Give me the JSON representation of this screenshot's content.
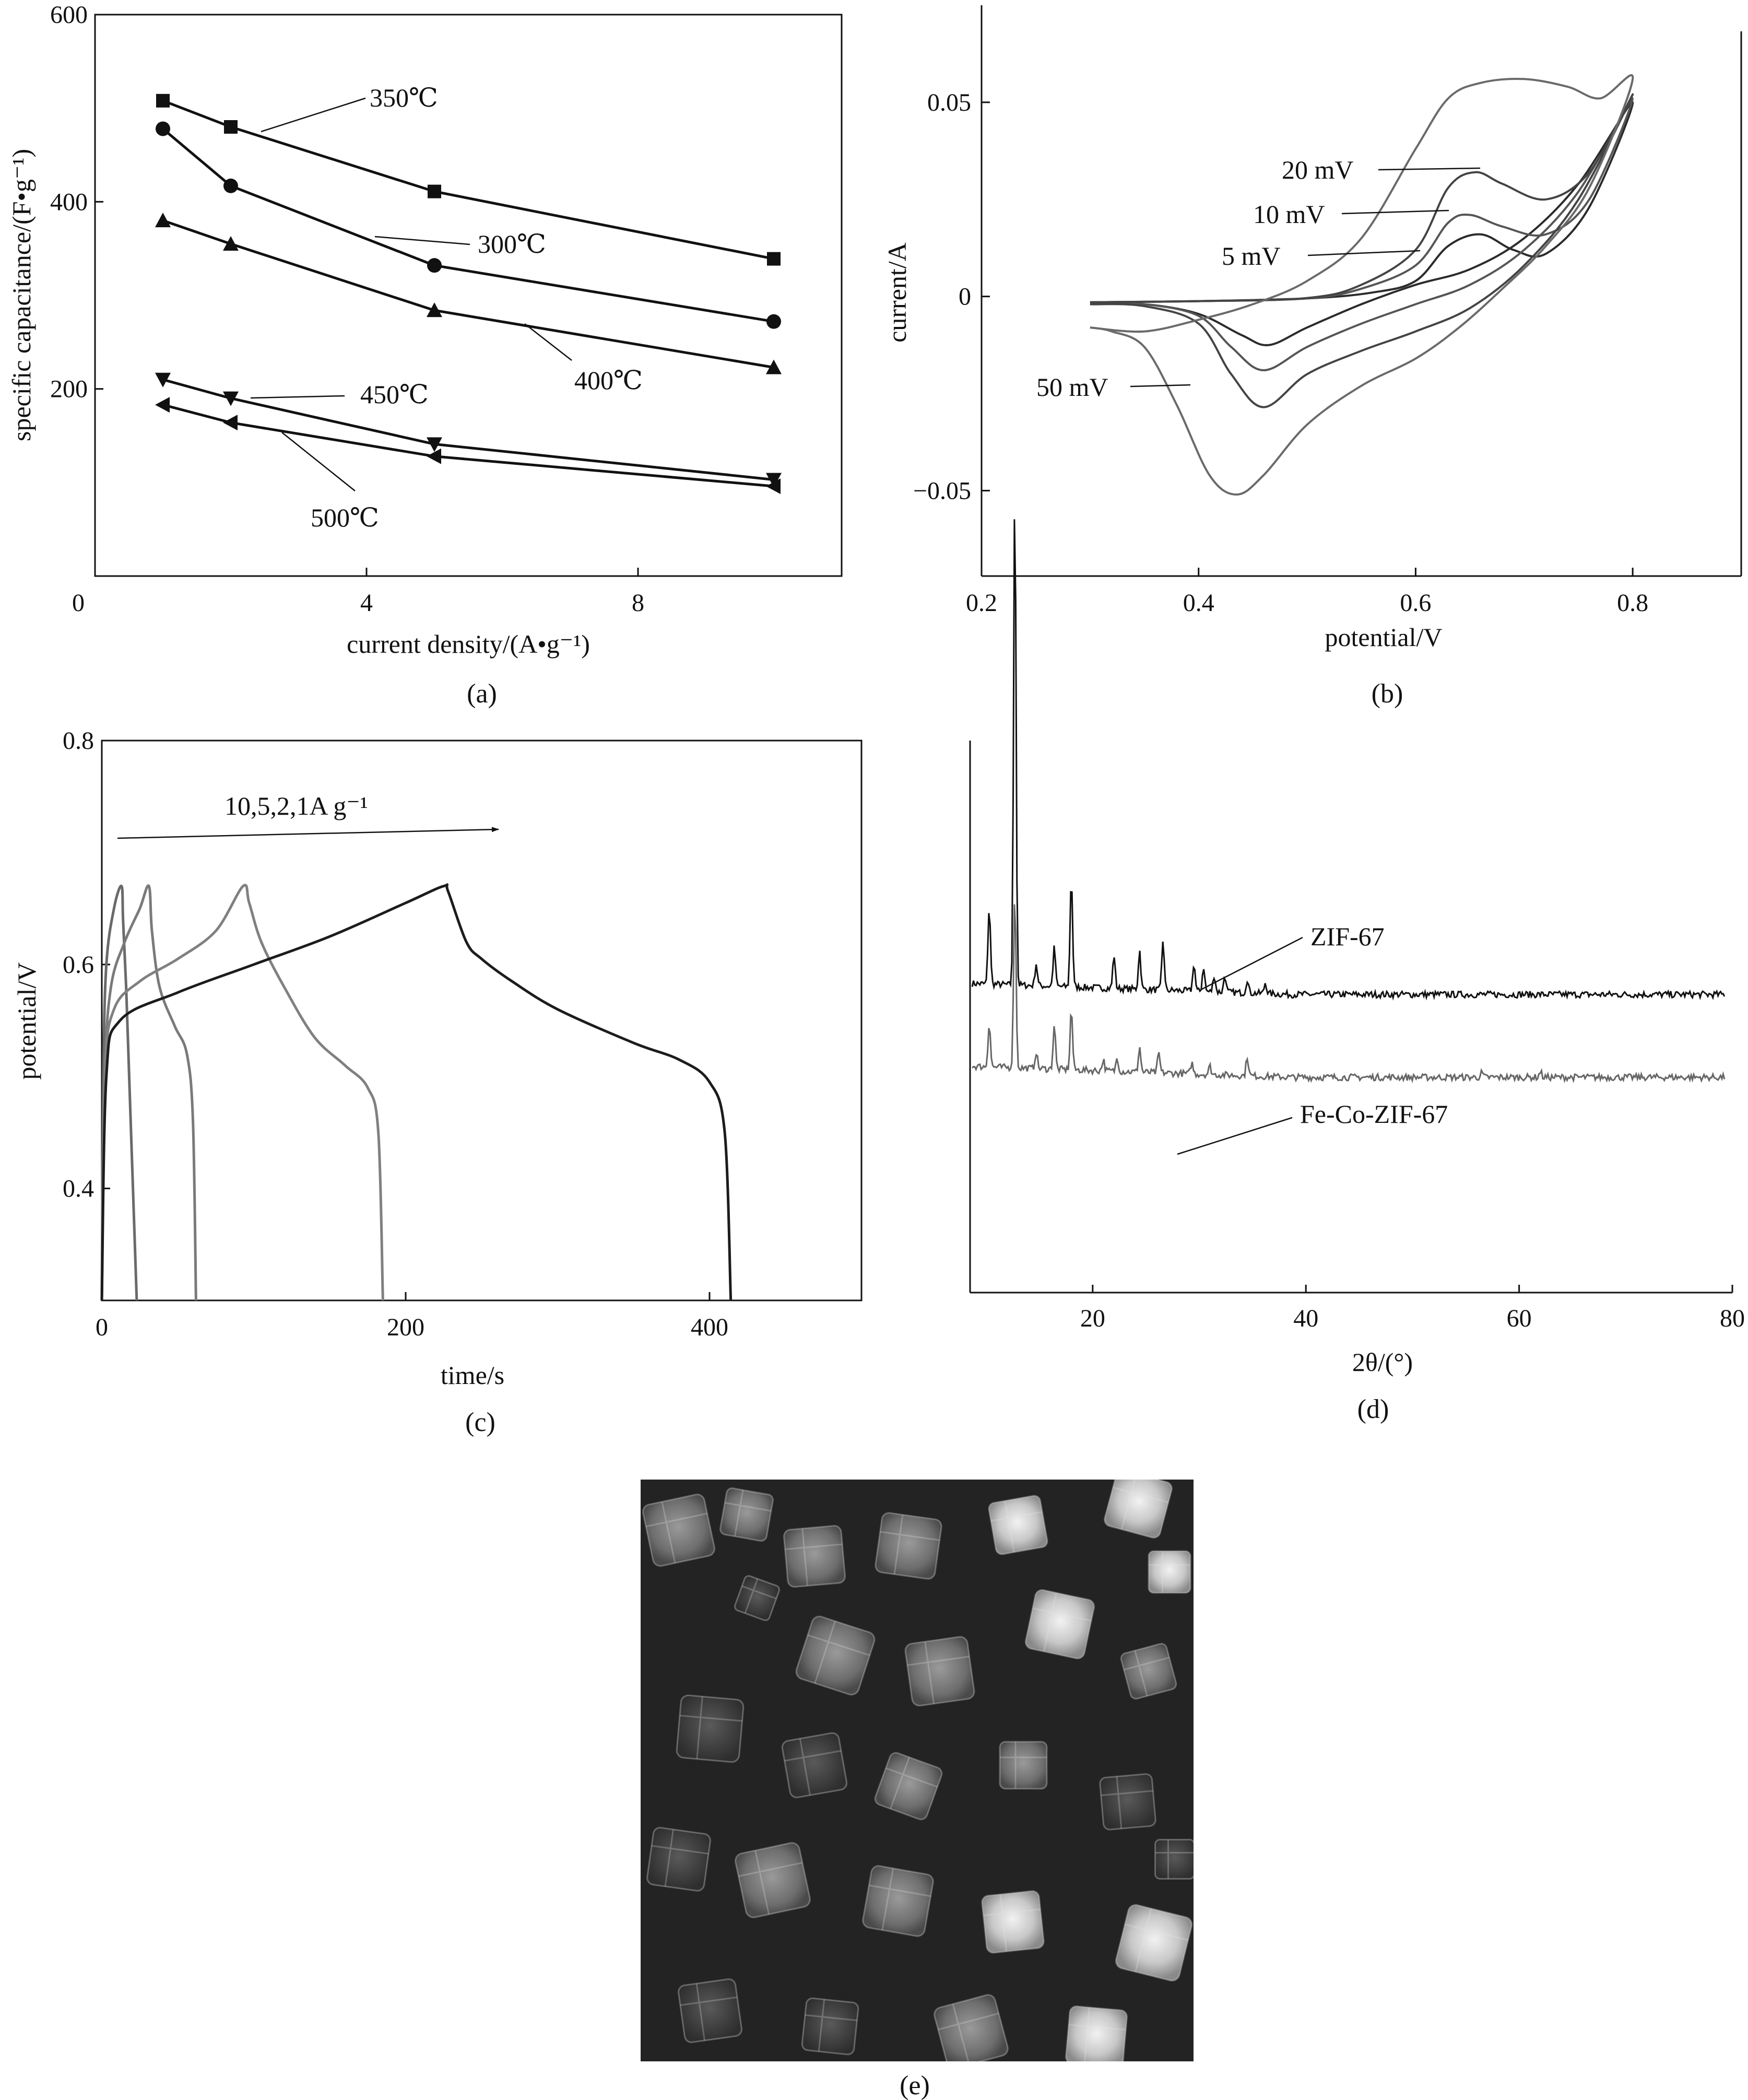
{
  "chart_data": [
    {
      "panel": "(a)",
      "type": "line",
      "xlabel": "current density/(A•g⁻¹)",
      "ylabel": "specific capacitance/(F•g⁻¹)",
      "xlim": [
        0,
        11
      ],
      "ylim": [
        0,
        600
      ],
      "xticks": [
        "0",
        "4",
        "8"
      ],
      "xtick_values": [
        0,
        4,
        8
      ],
      "yticks": [
        "600",
        "400",
        "200"
      ],
      "ytick_values": [
        600,
        400,
        200
      ],
      "x": [
        1.0,
        2.0,
        5.0,
        10.0
      ],
      "series": [
        {
          "name": "350℃",
          "marker": "square",
          "values": [
            508,
            480,
            411,
            339
          ]
        },
        {
          "name": "300℃",
          "marker": "circle",
          "values": [
            478,
            417,
            332,
            272
          ]
        },
        {
          "name": "400℃",
          "marker": "triangle-up",
          "values": [
            380,
            355,
            284,
            223
          ]
        },
        {
          "name": "450℃",
          "marker": "triangle-down",
          "values": [
            210,
            190,
            141,
            103
          ]
        },
        {
          "name": "500℃",
          "marker": "triangle-left",
          "values": [
            183,
            164,
            128,
            96
          ]
        }
      ]
    },
    {
      "panel": "(b)",
      "type": "line",
      "xlabel": "potential/V",
      "ylabel": "current/A",
      "xlim": [
        0.2,
        0.9
      ],
      "ylim": [
        -0.072,
        0.075
      ],
      "xticks": [
        "0.2",
        "0.4",
        "0.6",
        "0.8"
      ],
      "xtick_values": [
        0.2,
        0.4,
        0.6,
        0.8
      ],
      "yticks": [
        "0.05",
        "0",
        "−0.05"
      ],
      "ytick_values": [
        0.05,
        0,
        -0.05
      ],
      "series": [
        {
          "name": "5 mV",
          "forward": [
            [
              0.3,
              -0.0015
            ],
            [
              0.4,
              -0.0012
            ],
            [
              0.5,
              -0.0005
            ],
            [
              0.56,
              0.001
            ],
            [
              0.6,
              0.004
            ],
            [
              0.63,
              0.013
            ],
            [
              0.66,
              0.016
            ],
            [
              0.69,
              0.012
            ],
            [
              0.72,
              0.011
            ],
            [
              0.76,
              0.023
            ],
            [
              0.8,
              0.05
            ]
          ],
          "reverse": [
            [
              0.8,
              0.05
            ],
            [
              0.75,
              0.029
            ],
            [
              0.7,
              0.015
            ],
            [
              0.65,
              0.007
            ],
            [
              0.6,
              0.003
            ],
            [
              0.55,
              -0.002
            ],
            [
              0.5,
              -0.008
            ],
            [
              0.465,
              -0.0125
            ],
            [
              0.44,
              -0.01
            ],
            [
              0.4,
              -0.0045
            ],
            [
              0.35,
              -0.002
            ],
            [
              0.3,
              -0.002
            ]
          ]
        },
        {
          "name": "10 mV",
          "forward": [
            [
              0.3,
              -0.0015
            ],
            [
              0.4,
              -0.0012
            ],
            [
              0.5,
              -0.0005
            ],
            [
              0.55,
              0.002
            ],
            [
              0.6,
              0.008
            ],
            [
              0.63,
              0.019
            ],
            [
              0.65,
              0.021
            ],
            [
              0.68,
              0.018
            ],
            [
              0.72,
              0.016
            ],
            [
              0.76,
              0.025
            ],
            [
              0.8,
              0.051
            ]
          ],
          "reverse": [
            [
              0.8,
              0.051
            ],
            [
              0.75,
              0.027
            ],
            [
              0.7,
              0.012
            ],
            [
              0.65,
              0.003
            ],
            [
              0.6,
              -0.002
            ],
            [
              0.55,
              -0.007
            ],
            [
              0.5,
              -0.013
            ],
            [
              0.46,
              -0.019
            ],
            [
              0.43,
              -0.013
            ],
            [
              0.4,
              -0.005
            ],
            [
              0.35,
              -0.002
            ],
            [
              0.3,
              -0.002
            ]
          ]
        },
        {
          "name": "20 mV",
          "forward": [
            [
              0.3,
              -0.0015
            ],
            [
              0.4,
              -0.0012
            ],
            [
              0.5,
              -0.0004
            ],
            [
              0.55,
              0.003
            ],
            [
              0.6,
              0.012
            ],
            [
              0.63,
              0.028
            ],
            [
              0.655,
              0.032
            ],
            [
              0.68,
              0.029
            ],
            [
              0.72,
              0.025
            ],
            [
              0.76,
              0.032
            ],
            [
              0.8,
              0.052
            ]
          ],
          "reverse": [
            [
              0.8,
              0.052
            ],
            [
              0.75,
              0.025
            ],
            [
              0.7,
              0.008
            ],
            [
              0.65,
              -0.003
            ],
            [
              0.6,
              -0.009
            ],
            [
              0.55,
              -0.014
            ],
            [
              0.5,
              -0.02
            ],
            [
              0.46,
              -0.0285
            ],
            [
              0.43,
              -0.02
            ],
            [
              0.4,
              -0.007
            ],
            [
              0.35,
              -0.0025
            ],
            [
              0.3,
              -0.002
            ]
          ]
        },
        {
          "name": "50 mV",
          "forward": [
            [
              0.3,
              -0.008
            ],
            [
              0.35,
              -0.009
            ],
            [
              0.4,
              -0.006
            ],
            [
              0.45,
              -0.002
            ],
            [
              0.5,
              0.004
            ],
            [
              0.55,
              0.015
            ],
            [
              0.6,
              0.038
            ],
            [
              0.63,
              0.051
            ],
            [
              0.66,
              0.055
            ],
            [
              0.7,
              0.056
            ],
            [
              0.74,
              0.054
            ],
            [
              0.77,
              0.051
            ],
            [
              0.8,
              0.056
            ]
          ],
          "reverse": [
            [
              0.8,
              0.056
            ],
            [
              0.76,
              0.028
            ],
            [
              0.72,
              0.013
            ],
            [
              0.68,
              0.002
            ],
            [
              0.64,
              -0.008
            ],
            [
              0.6,
              -0.016
            ],
            [
              0.55,
              -0.023
            ],
            [
              0.5,
              -0.033
            ],
            [
              0.46,
              -0.046
            ],
            [
              0.435,
              -0.051
            ],
            [
              0.41,
              -0.046
            ],
            [
              0.38,
              -0.028
            ],
            [
              0.35,
              -0.013
            ],
            [
              0.32,
              -0.009
            ],
            [
              0.3,
              -0.008
            ]
          ]
        }
      ]
    },
    {
      "panel": "(c)",
      "type": "line",
      "xlabel": "time/s",
      "ylabel": "potential/V",
      "xlim": [
        0,
        500
      ],
      "ylim": [
        0.3,
        0.8
      ],
      "xticks": [
        "0",
        "200",
        "400"
      ],
      "xtick_values": [
        0,
        200,
        400
      ],
      "yticks": [
        "0.8",
        "0.6",
        "0.4"
      ],
      "ytick_values": [
        0.8,
        0.6,
        0.4
      ],
      "annotation": "10,5,2,1A g⁻¹",
      "series": [
        {
          "name": "10 A g⁻¹",
          "points": [
            [
              0,
              0.3
            ],
            [
              1,
              0.5
            ],
            [
              3,
              0.6
            ],
            [
              8,
              0.65
            ],
            [
              13,
              0.67
            ],
            [
              14,
              0.64
            ],
            [
              16,
              0.58
            ],
            [
              18,
              0.5
            ],
            [
              20,
              0.42
            ],
            [
              23,
              0.3
            ]
          ]
        },
        {
          "name": "5 A g⁻¹",
          "points": [
            [
              0,
              0.3
            ],
            [
              2,
              0.5
            ],
            [
              6,
              0.58
            ],
            [
              15,
              0.62
            ],
            [
              25,
              0.65
            ],
            [
              31,
              0.67
            ],
            [
              33,
              0.63
            ],
            [
              38,
              0.58
            ],
            [
              48,
              0.545
            ],
            [
              56,
              0.52
            ],
            [
              60,
              0.46
            ],
            [
              62,
              0.3
            ]
          ]
        },
        {
          "name": "2 A g⁻¹",
          "points": [
            [
              0,
              0.3
            ],
            [
              2,
              0.5
            ],
            [
              8,
              0.56
            ],
            [
              25,
              0.585
            ],
            [
              50,
              0.605
            ],
            [
              75,
              0.63
            ],
            [
              93,
              0.67
            ],
            [
              97,
              0.655
            ],
            [
              105,
              0.62
            ],
            [
              120,
              0.58
            ],
            [
              140,
              0.535
            ],
            [
              160,
              0.51
            ],
            [
              175,
              0.49
            ],
            [
              182,
              0.45
            ],
            [
              185,
              0.3
            ]
          ]
        },
        {
          "name": "1 A g⁻¹",
          "points": [
            [
              0,
              0.3
            ],
            [
              3,
              0.5
            ],
            [
              12,
              0.55
            ],
            [
              50,
              0.575
            ],
            [
              100,
              0.6
            ],
            [
              150,
              0.625
            ],
            [
              200,
              0.655
            ],
            [
              225,
              0.67
            ],
            [
              228,
              0.665
            ],
            [
              240,
              0.62
            ],
            [
              250,
              0.605
            ],
            [
              270,
              0.585
            ],
            [
              300,
              0.56
            ],
            [
              350,
              0.53
            ],
            [
              380,
              0.515
            ],
            [
              400,
              0.495
            ],
            [
              410,
              0.45
            ],
            [
              414,
              0.3
            ]
          ]
        }
      ]
    },
    {
      "panel": "(d)",
      "type": "line",
      "xlabel": "2θ/(°)",
      "ylabel": "",
      "xlim": [
        8.5,
        80
      ],
      "xticks": [
        "20",
        "40",
        "60",
        "80"
      ],
      "xtick_values": [
        20,
        40,
        60,
        80
      ],
      "series": [
        {
          "name": "ZIF-67",
          "baseline": 0.56,
          "tail": 0.54,
          "peaks": [
            [
              10.3,
              0.14
            ],
            [
              12.7,
              0.9
            ],
            [
              14.7,
              0.04
            ],
            [
              16.4,
              0.07
            ],
            [
              18.0,
              0.2
            ],
            [
              22.0,
              0.06
            ],
            [
              24.4,
              0.07
            ],
            [
              26.6,
              0.09
            ],
            [
              29.5,
              0.05
            ],
            [
              30.4,
              0.045
            ],
            [
              31.4,
              0.03
            ],
            [
              32.4,
              0.03
            ],
            [
              34.5,
              0.025
            ],
            [
              36.2,
              0.02
            ]
          ]
        },
        {
          "name": "Fe-Co-ZIF-67",
          "baseline": 0.41,
          "tail": 0.39,
          "peaks": [
            [
              10.3,
              0.08
            ],
            [
              12.7,
              0.32
            ],
            [
              14.7,
              0.03
            ],
            [
              16.4,
              0.08
            ],
            [
              18.0,
              0.11
            ],
            [
              21.0,
              0.02
            ],
            [
              22.3,
              0.025
            ],
            [
              24.4,
              0.045
            ],
            [
              26.2,
              0.035
            ],
            [
              29.3,
              0.02
            ],
            [
              31.0,
              0.015
            ],
            [
              34.5,
              0.035
            ],
            [
              56.5,
              0.008
            ],
            [
              62.0,
              0.01
            ]
          ]
        }
      ]
    }
  ],
  "panel_e": {
    "label": "(e)"
  }
}
